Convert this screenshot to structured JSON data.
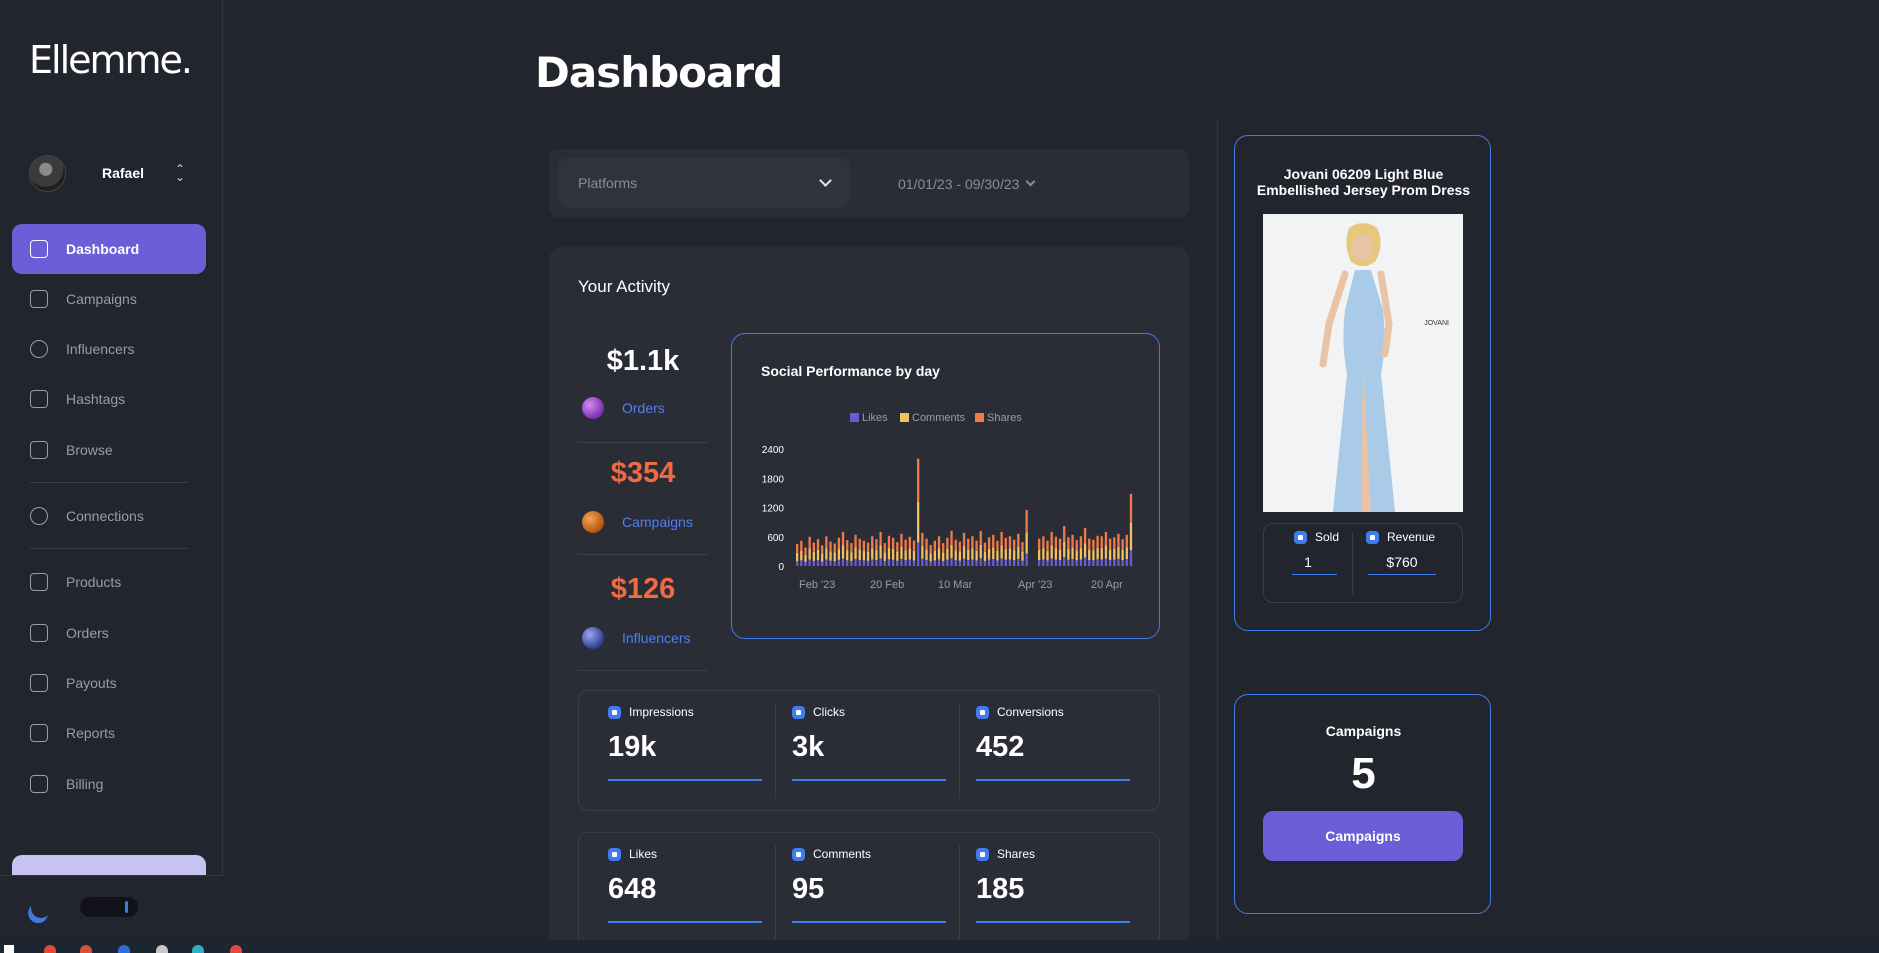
{
  "app": {
    "logo": "Ellemme."
  },
  "user": {
    "name": "Rafael",
    "toggle_icon": "chevron-up-down-icon"
  },
  "sidebar": {
    "items": [
      {
        "label": "Dashboard",
        "icon": "chart-icon",
        "active": true
      },
      {
        "label": "Campaigns",
        "icon": "bar-chart-icon"
      },
      {
        "label": "Influencers",
        "icon": "user-icon"
      },
      {
        "label": "Hashtags",
        "icon": "mail-icon"
      },
      {
        "label": "Browse",
        "icon": "archive-icon"
      },
      {
        "label": "Connections",
        "icon": "compass-icon"
      },
      {
        "label": "Products",
        "icon": "bag-icon"
      },
      {
        "label": "Orders",
        "icon": "list-icon"
      },
      {
        "label": "Payouts",
        "icon": "wallet-icon"
      },
      {
        "label": "Reports",
        "icon": "report-icon"
      },
      {
        "label": "Billing",
        "icon": "card-icon"
      }
    ]
  },
  "page": {
    "title": "Dashboard"
  },
  "filters": {
    "platforms": "Platforms",
    "date_range": "01/01/23 - 09/30/23"
  },
  "activity": {
    "title": "Your Activity",
    "stats": [
      {
        "value": "$1.1k",
        "label": "Orders",
        "color": "#ffffff"
      },
      {
        "value": "$354",
        "label": "Campaigns",
        "color": "#f06a42"
      },
      {
        "value": "$126",
        "label": "Influencers",
        "color": "#f06a42"
      }
    ],
    "metrics_row1": [
      {
        "label": "Impressions",
        "value": "19k"
      },
      {
        "label": "Clicks",
        "value": "3k"
      },
      {
        "label": "Conversions",
        "value": "452"
      }
    ],
    "metrics_row2": [
      {
        "label": "Likes",
        "value": "648"
      },
      {
        "label": "Comments",
        "value": "95"
      },
      {
        "label": "Shares",
        "value": "185"
      }
    ]
  },
  "chart_data": {
    "type": "bar",
    "title": "Social Performance by day",
    "stacked": true,
    "legend_position": "top-center",
    "legend": [
      "Likes",
      "Comments",
      "Shares"
    ],
    "colors": {
      "Likes": "#6a5ad6",
      "Comments": "#f4c060",
      "Shares": "#f07a4a"
    },
    "y_ticks": [
      "2400",
      "1800",
      "1200",
      "600",
      "0"
    ],
    "ylim": [
      0,
      2400
    ],
    "x_tick_labels": [
      "Feb '23",
      "20 Feb",
      "10 Mar",
      "Apr '23",
      "20 Apr"
    ],
    "totals": [
      450,
      520,
      380,
      600,
      480,
      550,
      420,
      610,
      500,
      460,
      580,
      700,
      530,
      470,
      640,
      560,
      520,
      480,
      610,
      550,
      700,
      470,
      620,
      580,
      490,
      660,
      540,
      600,
      520,
      2200,
      680,
      560,
      430,
      520,
      610,
      470,
      580,
      720,
      540,
      500,
      680,
      560,
      610,
      520,
      720,
      480,
      590,
      640,
      520,
      700,
      580,
      610,
      540,
      660,
      490,
      1150,
      0,
      0,
      560,
      610,
      520,
      700,
      600,
      560,
      820,
      590,
      640,
      530,
      610,
      780,
      560,
      540,
      620,
      610,
      700,
      560,
      590,
      660,
      550,
      640,
      1480
    ]
  },
  "product": {
    "title": "Jovani 06209 Light Blue Embellished Jersey Prom Dress",
    "brand_tag": "JOVANI",
    "sold_label": "Sold",
    "sold_value": "1",
    "revenue_label": "Revenue",
    "revenue_value": "$760"
  },
  "campaigns": {
    "label": "Campaigns",
    "count": "5",
    "button": "Campaigns"
  }
}
